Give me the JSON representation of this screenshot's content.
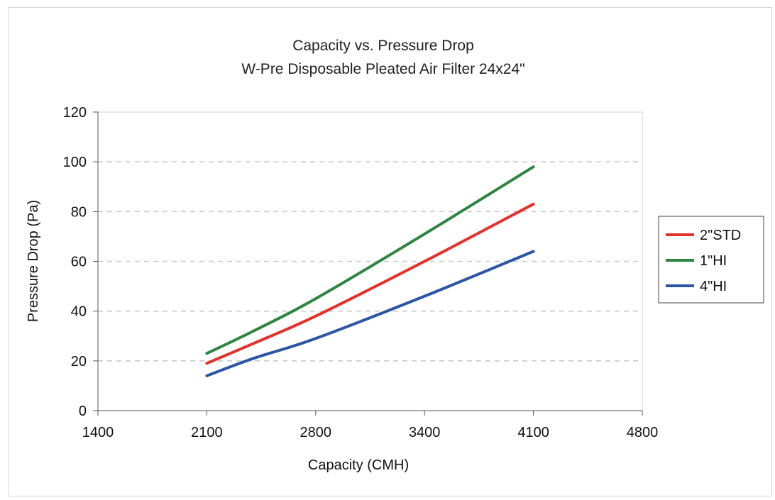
{
  "chart_data": {
    "type": "line",
    "title": "Capacity vs. Pressure Drop",
    "subtitle": "W-Pre Disposable Pleated Air Filter 24x24\"",
    "xlabel": "Capacity (CMH)",
    "ylabel": "Pressure Drop (Pa)",
    "xlim": [
      1400,
      4800
    ],
    "ylim": [
      0,
      120
    ],
    "xticks": [
      1400,
      2100,
      2800,
      3400,
      4100,
      4800
    ],
    "yticks": [
      0,
      20,
      40,
      60,
      80,
      100,
      120
    ],
    "grid": "horizontal dashed",
    "legend_position": "right",
    "series": [
      {
        "name": "2\"STD",
        "color": "#e3322b",
        "x": [
          2100,
          2400,
          2800,
          3400,
          4100
        ],
        "y": [
          19,
          27,
          38,
          60,
          83
        ]
      },
      {
        "name": "1\"HI",
        "color": "#2e8540",
        "x": [
          2100,
          2400,
          2800,
          3400,
          4100
        ],
        "y": [
          23,
          32,
          45,
          71,
          98
        ]
      },
      {
        "name": "4\"HI",
        "color": "#2b55a5",
        "x": [
          2100,
          2400,
          2800,
          3400,
          4100
        ],
        "y": [
          14,
          21,
          29,
          46,
          64
        ]
      }
    ]
  }
}
